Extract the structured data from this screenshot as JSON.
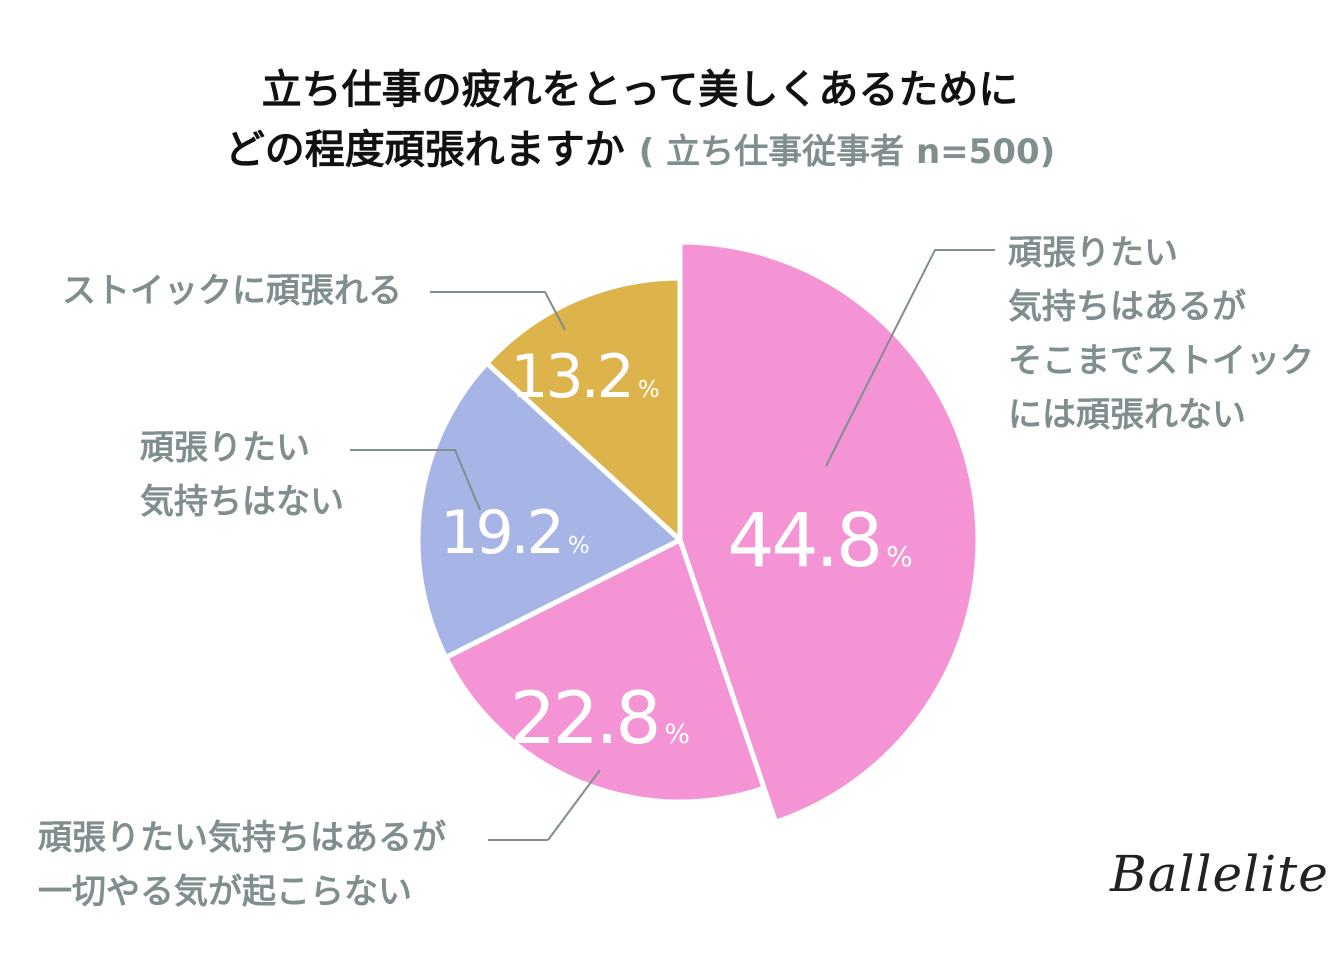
{
  "title": {
    "line1": "立ち仕事の疲れをとって美しくあるために",
    "line2": "どの程度頑張れますか",
    "subtitle": "( 立ち仕事従事者 n=500)"
  },
  "brand": "Ballelite",
  "chart_data": {
    "type": "pie",
    "title": "立ち仕事の疲れをとって美しくあるために どの程度頑張れますか",
    "subtitle": "( 立ち仕事従事者 n=500)",
    "unit": "%",
    "slices": [
      {
        "value": 44.8,
        "value_text": "44.8",
        "color": "#f494d4",
        "label_lines": [
          "頑張りたい",
          "気持ちはあるが",
          "そこまでストイック",
          "には頑張れない"
        ]
      },
      {
        "value": 22.8,
        "value_text": "22.8",
        "color": "#f494d4",
        "label_lines": [
          "頑張りたい気持ちはあるが",
          "一切やる気が起こらない"
        ]
      },
      {
        "value": 19.2,
        "value_text": "19.2",
        "color": "#a6b4e6",
        "label_lines": [
          "頑張りたい",
          "気持ちはない"
        ]
      },
      {
        "value": 13.2,
        "value_text": "13.2",
        "color": "#ddb44b",
        "label_lines": [
          "ストイックに頑張れる"
        ]
      }
    ]
  }
}
